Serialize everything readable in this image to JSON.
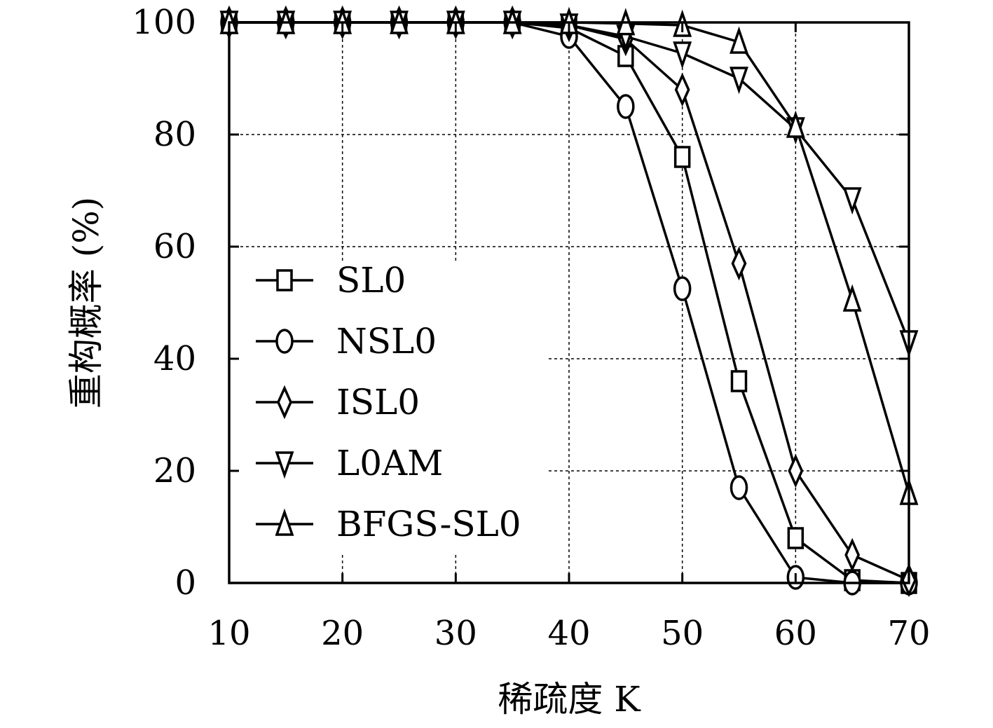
{
  "chart_data": {
    "type": "line",
    "title": "",
    "xlabel": "稀疏度 K",
    "ylabel": "重构概率 (%)",
    "x": [
      10,
      15,
      20,
      25,
      30,
      35,
      40,
      45,
      50,
      55,
      60,
      65,
      70
    ],
    "xticks": [
      10,
      20,
      30,
      40,
      50,
      60,
      70
    ],
    "yticks": [
      0,
      20,
      40,
      60,
      80,
      100
    ],
    "xlim": [
      10,
      70
    ],
    "ylim": [
      0,
      100
    ],
    "grid": true,
    "legend_position": "left-center",
    "series": [
      {
        "name": "SL0",
        "marker": "square",
        "values": [
          100,
          100,
          100,
          100,
          100,
          100,
          99,
          94,
          76,
          36,
          8,
          0.5,
          0
        ]
      },
      {
        "name": "NSL0",
        "marker": "circle",
        "values": [
          100,
          100,
          100,
          100,
          100,
          100,
          97.5,
          85,
          52.5,
          17,
          1,
          0,
          0
        ]
      },
      {
        "name": "ISL0",
        "marker": "diamond",
        "values": [
          100,
          100,
          100,
          100,
          100,
          100,
          99.5,
          97,
          88,
          57,
          20,
          5,
          0.5
        ]
      },
      {
        "name": "L0AM",
        "marker": "triangle-down",
        "values": [
          100,
          100,
          100,
          100,
          100,
          100,
          99.5,
          97.5,
          94.5,
          90,
          81,
          68.5,
          43
        ]
      },
      {
        "name": "BFGS-SL0",
        "marker": "triangle-up",
        "values": [
          100,
          100,
          100,
          100,
          100,
          100,
          100,
          99.8,
          99.5,
          96.5,
          81.5,
          50.5,
          16
        ]
      }
    ]
  }
}
